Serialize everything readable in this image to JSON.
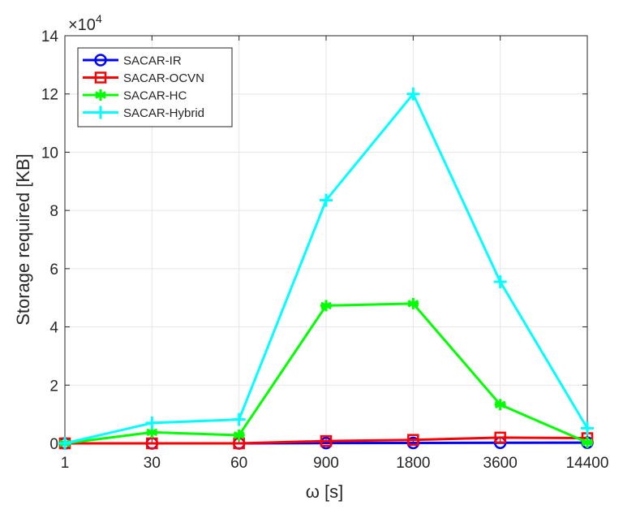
{
  "chart_data": {
    "type": "line",
    "title": "",
    "xlabel": "ω [s]",
    "ylabel": "Storage required [KB]",
    "y_multiplier": "×10",
    "y_multiplier_exp": "4",
    "categories": [
      "1",
      "30",
      "60",
      "900",
      "1800",
      "3600",
      "14400"
    ],
    "ylim": [
      0,
      140000
    ],
    "yticks": [
      0,
      20000,
      40000,
      60000,
      80000,
      100000,
      120000,
      140000
    ],
    "ytick_labels": [
      "0",
      "2",
      "4",
      "6",
      "8",
      "10",
      "12",
      "14"
    ],
    "grid": true,
    "legend_position": "top-left",
    "series": [
      {
        "name": "SACAR-IR",
        "color": "#0000ff",
        "marker": "circle",
        "values": [
          0,
          0,
          0,
          100,
          150,
          200,
          250
        ]
      },
      {
        "name": "SACAR-OCVN",
        "color": "#ff0000",
        "marker": "square",
        "values": [
          0,
          0,
          0,
          800,
          1200,
          2000,
          1800
        ]
      },
      {
        "name": "SACAR-HC",
        "color": "#00ff00",
        "marker": "asterisk",
        "values": [
          0,
          3800,
          2800,
          47300,
          48000,
          13300,
          300
        ]
      },
      {
        "name": "SACAR-Hybrid",
        "color": "#00ffff",
        "marker": "plus",
        "values": [
          0,
          7000,
          8200,
          83500,
          120000,
          55500,
          5200
        ]
      }
    ]
  }
}
